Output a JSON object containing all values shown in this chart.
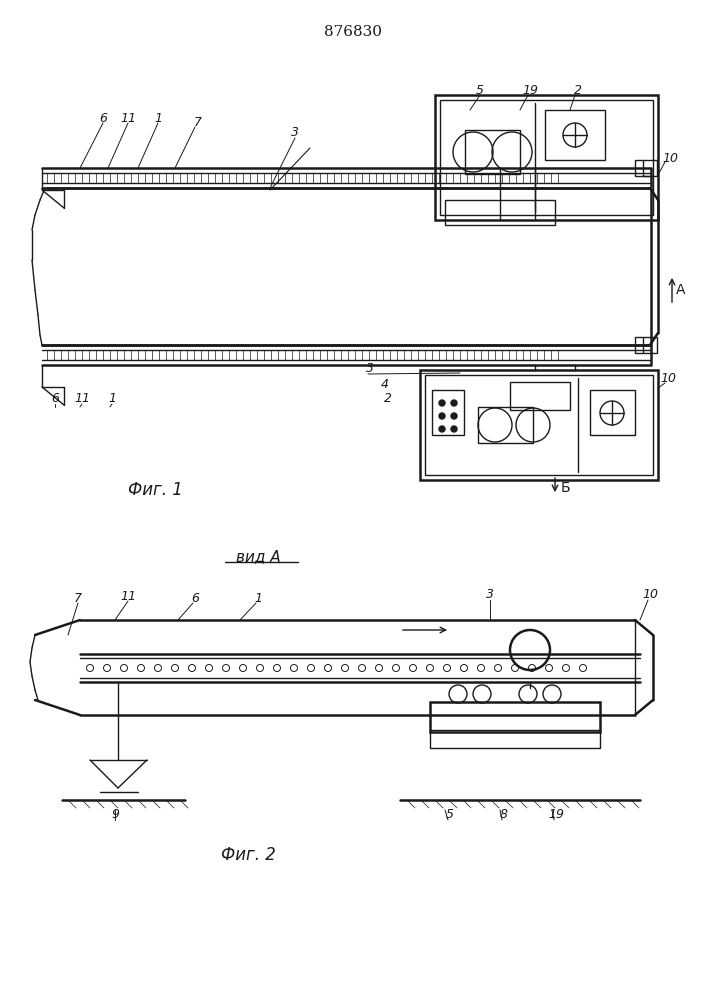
{
  "title": "876830",
  "bg_color": "#ffffff",
  "line_color": "#1a1a1a",
  "lw": 1.0,
  "lw2": 1.8,
  "fig1_caption": "Фиг. 1",
  "fig2_caption": "Фиг. 2",
  "vida_label": "вид A"
}
